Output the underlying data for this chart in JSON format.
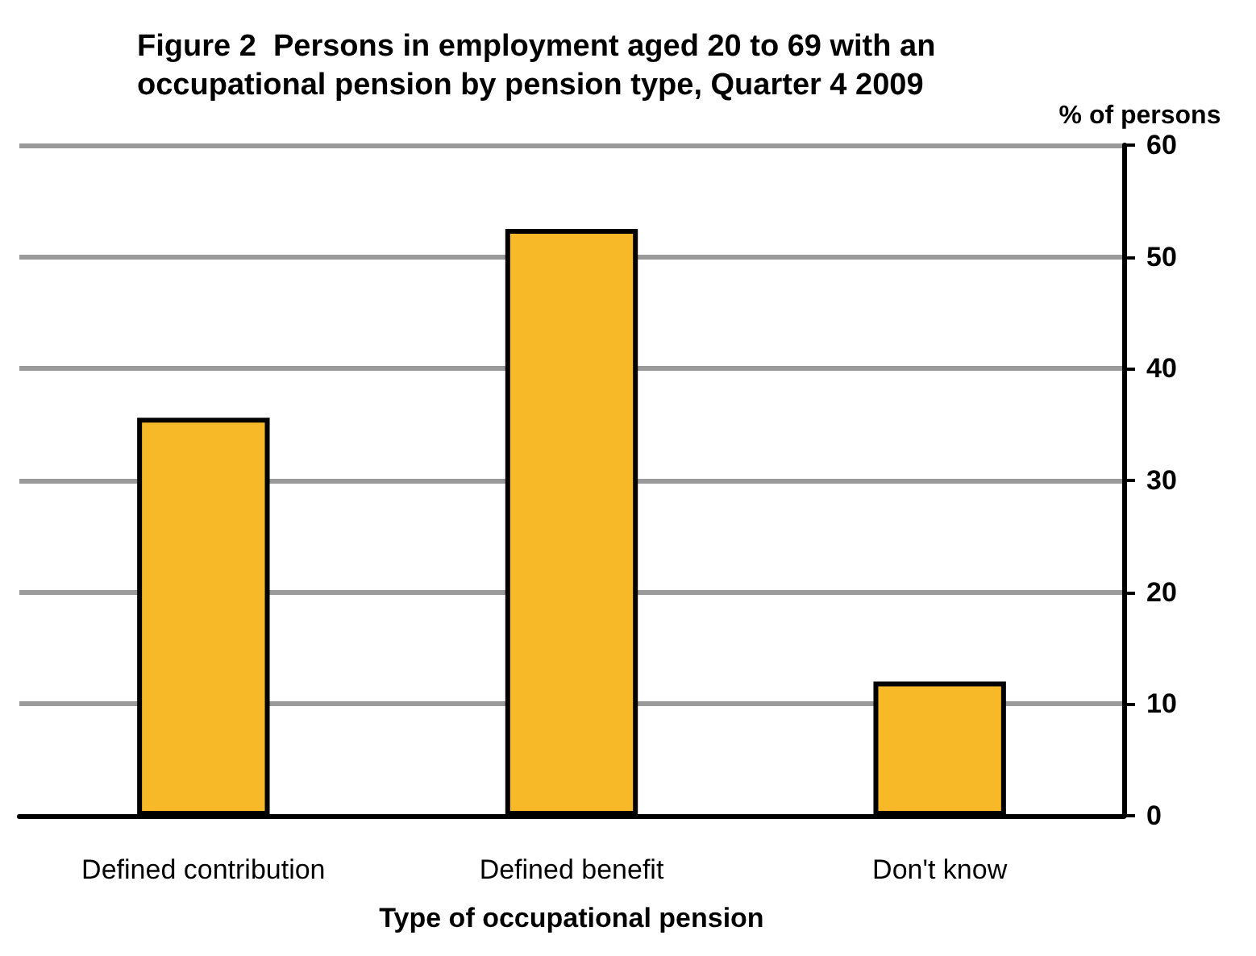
{
  "chart_data": {
    "type": "bar",
    "title": "Figure 2  Persons in employment aged 20 to 69 with an occupational pension by pension type, Quarter 4 2009",
    "xlabel": "Type of occupational pension",
    "ylabel": "% of persons",
    "categories": [
      "Defined contribution",
      "Defined benefit",
      "Don't know"
    ],
    "values": [
      35.6,
      52.5,
      12.0
    ],
    "color": "#f7b928",
    "ylim": [
      0,
      60
    ],
    "yticks": [
      0,
      10,
      20,
      30,
      40,
      50,
      60
    ],
    "grid": "y"
  }
}
